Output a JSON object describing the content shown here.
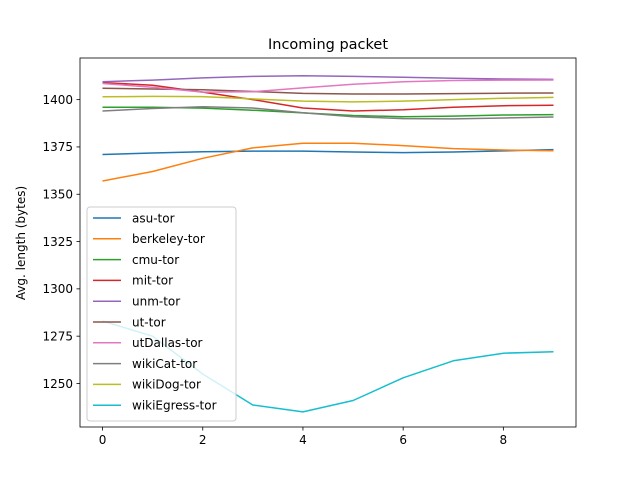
{
  "chart_data": {
    "type": "line",
    "title": "Incoming packet",
    "xlabel": "",
    "ylabel": "Avg. length (bytes)",
    "xlim": [
      -0.45,
      9.45
    ],
    "ylim": [
      1227,
      1422
    ],
    "x": [
      0,
      1,
      2,
      3,
      4,
      5,
      6,
      7,
      8,
      9
    ],
    "xticks": [
      0,
      2,
      4,
      6,
      8
    ],
    "yticks": [
      1250,
      1275,
      1300,
      1325,
      1350,
      1375,
      1400
    ],
    "legend_position": "lower-left",
    "grid": false,
    "series": [
      {
        "name": "asu-tor",
        "color": "#1f77b4",
        "values": [
          1371,
          1371.8,
          1372.5,
          1372.8,
          1372.8,
          1372.3,
          1372,
          1372.3,
          1372.9,
          1373.6
        ]
      },
      {
        "name": "berkeley-tor",
        "color": "#ff7f0e",
        "values": [
          1357,
          1362,
          1369,
          1374.5,
          1377,
          1377,
          1375.7,
          1374.1,
          1373.4,
          1373
        ]
      },
      {
        "name": "cmu-tor",
        "color": "#2ca02c",
        "values": [
          1396,
          1396,
          1395.5,
          1394.4,
          1393,
          1391.6,
          1391,
          1391.3,
          1391.9,
          1392.1
        ]
      },
      {
        "name": "mit-tor",
        "color": "#d62728",
        "values": [
          1409,
          1407.6,
          1404,
          1400,
          1395.6,
          1394,
          1394.6,
          1396,
          1396.8,
          1397
        ]
      },
      {
        "name": "unm-tor",
        "color": "#9467bd",
        "values": [
          1409.5,
          1410.3,
          1411.5,
          1412.3,
          1412.6,
          1412.3,
          1411.8,
          1411.3,
          1410.9,
          1410.7
        ]
      },
      {
        "name": "ut-tor",
        "color": "#8c564b",
        "values": [
          1406,
          1405.6,
          1405.2,
          1404.3,
          1403.3,
          1403,
          1403,
          1403.2,
          1403.4,
          1403.5
        ]
      },
      {
        "name": "utDallas-tor",
        "color": "#e377c2",
        "values": [
          1408.5,
          1406.5,
          1404,
          1404.2,
          1406.2,
          1408.1,
          1409.4,
          1410.1,
          1410.3,
          1410.4
        ]
      },
      {
        "name": "wikiCat-tor",
        "color": "#7f7f7f",
        "values": [
          1394,
          1395.3,
          1396.2,
          1395.6,
          1393.1,
          1391,
          1390,
          1389.8,
          1390.3,
          1390.8
        ]
      },
      {
        "name": "wikiDog-tor",
        "color": "#bcbd22",
        "values": [
          1401.5,
          1401.7,
          1401.6,
          1400.4,
          1399.2,
          1398.8,
          1399.2,
          1400,
          1400.7,
          1401.2
        ]
      },
      {
        "name": "wikiEgress-tor",
        "color": "#17becf",
        "values": [
          1283,
          1275,
          1255,
          1238.6,
          1235,
          1241,
          1253,
          1262,
          1266,
          1266.8
        ]
      }
    ]
  }
}
